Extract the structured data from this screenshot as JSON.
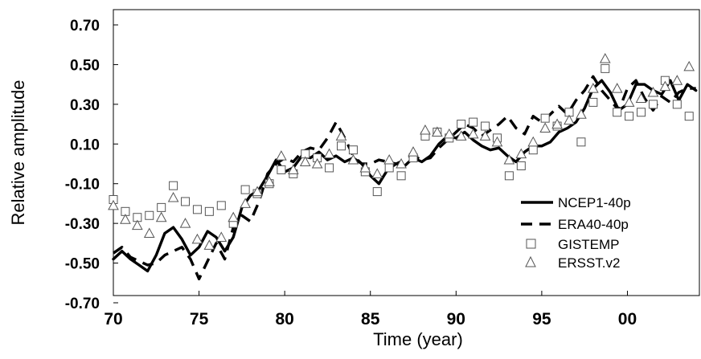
{
  "chart_data": {
    "type": "line",
    "title": "",
    "xlabel": "Time (year)",
    "ylabel": "Relative amplitude",
    "xlim": [
      1970,
      2004.2
    ],
    "ylim": [
      -0.7,
      0.7
    ],
    "xticks": [
      1970,
      1975,
      1980,
      1985,
      1990,
      1995,
      2000
    ],
    "xtick_labels": [
      "70",
      "75",
      "80",
      "85",
      "90",
      "95",
      "00"
    ],
    "yticks": [
      -0.7,
      -0.5,
      -0.3,
      -0.1,
      0.1,
      0.3,
      0.5,
      0.7
    ],
    "ytick_labels": [
      "-0.70",
      "-0.50",
      "-0.30",
      "-0.10",
      "0.10",
      "0.30",
      "0.50",
      "0.70"
    ],
    "grid": false,
    "legend_position": "lower-right",
    "series": [
      {
        "name": "NCEP1-40p",
        "style": "solid",
        "color": "#000000",
        "x": [
          1970.0,
          1970.5,
          1971.0,
          1971.5,
          1972.0,
          1972.5,
          1973.0,
          1973.5,
          1974.0,
          1974.5,
          1975.0,
          1975.5,
          1976.0,
          1976.5,
          1977.0,
          1977.5,
          1978.0,
          1978.5,
          1979.0,
          1979.5,
          1980.0,
          1980.5,
          1981.0,
          1981.5,
          1982.0,
          1982.5,
          1983.0,
          1983.5,
          1984.0,
          1984.5,
          1985.0,
          1985.5,
          1986.0,
          1986.5,
          1987.0,
          1987.5,
          1988.0,
          1988.5,
          1989.0,
          1989.5,
          1990.0,
          1990.5,
          1991.0,
          1991.5,
          1992.0,
          1992.5,
          1993.0,
          1993.5,
          1994.0,
          1994.5,
          1995.0,
          1995.5,
          1996.0,
          1996.5,
          1997.0,
          1997.5,
          1998.0,
          1998.5,
          1999.0,
          1999.5,
          2000.0,
          2000.5,
          2001.0,
          2001.5,
          2002.0,
          2002.5,
          2003.0,
          2003.5,
          2004.0
        ],
        "y": [
          -0.48,
          -0.44,
          -0.48,
          -0.51,
          -0.54,
          -0.46,
          -0.35,
          -0.32,
          -0.38,
          -0.46,
          -0.42,
          -0.34,
          -0.37,
          -0.44,
          -0.37,
          -0.22,
          -0.16,
          -0.13,
          -0.06,
          0.02,
          -0.04,
          -0.02,
          0.04,
          0.03,
          0.06,
          0.02,
          0.04,
          0.01,
          0.03,
          0.0,
          -0.06,
          -0.1,
          -0.03,
          0.0,
          -0.01,
          0.03,
          0.01,
          0.04,
          0.1,
          0.14,
          0.13,
          0.16,
          0.12,
          0.09,
          0.07,
          0.08,
          0.04,
          0.01,
          0.06,
          0.09,
          0.09,
          0.11,
          0.16,
          0.18,
          0.21,
          0.28,
          0.38,
          0.42,
          0.36,
          0.27,
          0.3,
          0.4,
          0.4,
          0.37,
          0.35,
          0.42,
          0.32,
          0.4,
          0.37
        ]
      },
      {
        "name": "ERA40-40p",
        "style": "dashed",
        "color": "#000000",
        "x": [
          1970.0,
          1970.5,
          1971.0,
          1971.5,
          1972.0,
          1972.5,
          1973.0,
          1973.5,
          1974.0,
          1974.5,
          1975.0,
          1975.5,
          1976.0,
          1976.5,
          1977.0,
          1977.5,
          1978.0,
          1978.5,
          1979.0,
          1979.5,
          1980.0,
          1980.5,
          1981.0,
          1981.5,
          1982.0,
          1982.5,
          1983.0,
          1983.5,
          1984.0,
          1984.5,
          1985.0,
          1985.5,
          1986.0,
          1986.5,
          1987.0,
          1987.5,
          1988.0,
          1988.5,
          1989.0,
          1989.5,
          1990.0,
          1990.5,
          1991.0,
          1991.5,
          1992.0,
          1992.5,
          1993.0,
          1993.5,
          1994.0,
          1994.5,
          1995.0,
          1995.5,
          1996.0,
          1996.5,
          1997.0,
          1997.5,
          1998.0,
          1998.5,
          1999.0,
          1999.5,
          2000.0,
          2000.5,
          2001.0,
          2001.5,
          2002.0,
          2002.5,
          2003.0,
          2003.5,
          2004.0
        ],
        "y": [
          -0.45,
          -0.42,
          -0.47,
          -0.49,
          -0.51,
          -0.5,
          -0.46,
          -0.44,
          -0.42,
          -0.48,
          -0.58,
          -0.49,
          -0.4,
          -0.48,
          -0.32,
          -0.26,
          -0.29,
          -0.19,
          -0.05,
          0.0,
          0.03,
          0.01,
          0.06,
          0.08,
          0.07,
          0.13,
          0.21,
          0.13,
          0.04,
          0.0,
          0.0,
          0.02,
          0.01,
          0.0,
          0.02,
          0.04,
          0.02,
          0.03,
          0.08,
          0.12,
          0.16,
          0.2,
          0.18,
          0.14,
          0.17,
          0.2,
          0.24,
          0.18,
          0.15,
          0.24,
          0.21,
          0.25,
          0.29,
          0.25,
          0.32,
          0.37,
          0.44,
          0.37,
          0.32,
          0.27,
          0.38,
          0.42,
          0.33,
          0.27,
          0.34,
          0.31,
          0.36,
          0.38,
          0.38
        ]
      },
      {
        "name": "GISTEMP",
        "style": "marker-square",
        "color": "#555555",
        "x": [
          1970.0,
          1970.7,
          1971.4,
          1972.1,
          1972.8,
          1973.5,
          1974.2,
          1974.9,
          1975.6,
          1976.3,
          1977.0,
          1977.7,
          1978.4,
          1979.1,
          1979.8,
          1980.5,
          1981.2,
          1981.9,
          1982.6,
          1983.3,
          1984.0,
          1984.7,
          1985.4,
          1986.1,
          1986.8,
          1987.5,
          1988.2,
          1988.9,
          1989.6,
          1990.3,
          1991.0,
          1991.7,
          1992.4,
          1993.1,
          1993.8,
          1994.5,
          1995.2,
          1995.9,
          1996.6,
          1997.3,
          1998.0,
          1998.7,
          1999.4,
          2000.1,
          2000.8,
          2001.5,
          2002.2,
          2002.9,
          2003.6
        ],
        "y": [
          -0.18,
          -0.24,
          -0.27,
          -0.26,
          -0.22,
          -0.11,
          -0.19,
          -0.23,
          -0.24,
          -0.21,
          -0.3,
          -0.13,
          -0.15,
          -0.1,
          -0.03,
          -0.05,
          0.05,
          0.03,
          -0.02,
          0.09,
          0.07,
          -0.04,
          -0.14,
          -0.02,
          -0.06,
          0.03,
          0.14,
          0.16,
          0.13,
          0.2,
          0.21,
          0.19,
          0.13,
          -0.06,
          -0.01,
          0.07,
          0.23,
          0.19,
          0.26,
          0.11,
          0.31,
          0.48,
          0.26,
          0.24,
          0.26,
          0.3,
          0.42,
          0.3,
          0.24
        ]
      },
      {
        "name": "ERSST.v2",
        "style": "marker-triangle",
        "color": "#555555",
        "x": [
          1970.0,
          1970.7,
          1971.4,
          1972.1,
          1972.8,
          1973.5,
          1974.2,
          1974.9,
          1975.6,
          1976.3,
          1977.0,
          1977.7,
          1978.4,
          1979.1,
          1979.8,
          1980.5,
          1981.2,
          1981.9,
          1982.6,
          1983.3,
          1984.0,
          1984.7,
          1985.4,
          1986.1,
          1986.8,
          1987.5,
          1988.2,
          1988.9,
          1989.6,
          1990.3,
          1991.0,
          1991.7,
          1992.4,
          1993.1,
          1993.8,
          1994.5,
          1995.2,
          1995.9,
          1996.6,
          1997.3,
          1998.0,
          1998.7,
          1999.4,
          2000.1,
          2000.8,
          2001.5,
          2002.2,
          2002.9,
          2003.6
        ],
        "y": [
          -0.21,
          -0.28,
          -0.31,
          -0.35,
          -0.27,
          -0.17,
          -0.3,
          -0.38,
          -0.41,
          -0.37,
          -0.27,
          -0.2,
          -0.14,
          -0.09,
          0.04,
          -0.03,
          0.01,
          0.0,
          0.05,
          0.14,
          0.02,
          -0.02,
          -0.05,
          0.02,
          0.0,
          0.06,
          0.17,
          0.16,
          0.15,
          0.14,
          0.15,
          0.14,
          0.11,
          0.02,
          0.05,
          0.11,
          0.18,
          0.2,
          0.22,
          0.25,
          0.38,
          0.53,
          0.38,
          0.31,
          0.33,
          0.36,
          0.39,
          0.42,
          0.49
        ]
      }
    ]
  }
}
